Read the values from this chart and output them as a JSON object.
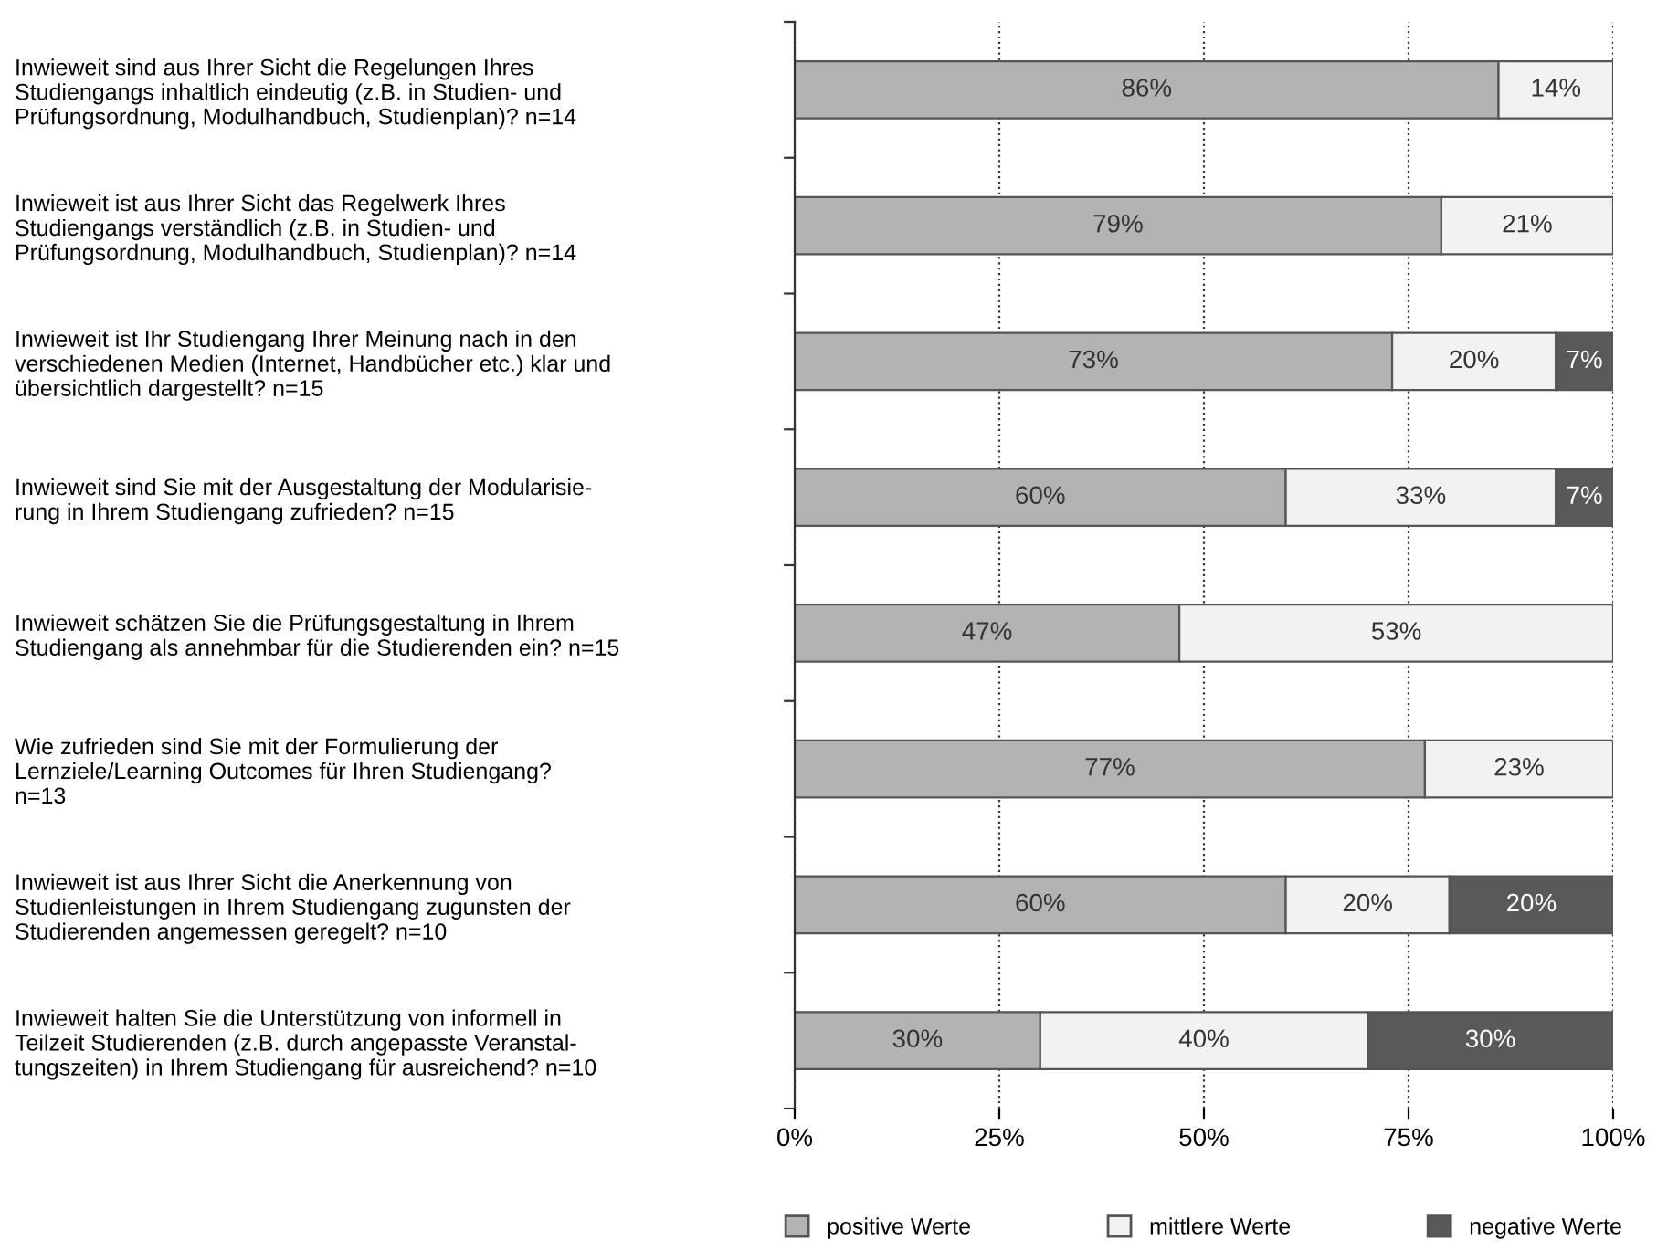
{
  "chart_data": {
    "type": "bar",
    "orientation": "horizontal",
    "stacked": true,
    "categories": [
      "Inwieweit sind aus Ihrer Sicht die Regelungen Ihres\nStudiengangs inhaltlich eindeutig (z.B. in Studien- und\nPrüfungsordnung, Modulhandbuch, Studienplan)? n=14",
      "Inwieweit ist aus Ihrer Sicht das Regelwerk Ihres\nStudiengangs verständlich (z.B. in Studien- und\nPrüfungsordnung, Modulhandbuch, Studienplan)? n=14",
      "Inwieweit ist Ihr Studiengang Ihrer Meinung nach in den\nverschiedenen Medien (Internet, Handbücher etc.) klar und\nübersichtlich dargestellt? n=15",
      "Inwieweit sind Sie mit der Ausgestaltung der Modularisie-\nrung in Ihrem Studiengang zufrieden? n=15",
      "Inwieweit schätzen Sie die Prüfungsgestaltung in Ihrem\nStudiengang als annehmbar für die Studierenden ein? n=15",
      "Wie zufrieden sind Sie mit der Formulierung der\nLernziele/Learning Outcomes für Ihren Studiengang?\nn=13",
      "Inwieweit ist aus Ihrer Sicht die Anerkennung von\nStudienleistungen in Ihrem Studiengang zugunsten der\nStudierenden angemessen geregelt? n=10",
      "Inwieweit halten Sie die Unterstützung von informell in\nTeilzeit Studierenden (z.B. durch angepasste Veranstal-\ntungszeiten) in Ihrem Studiengang für ausreichend? n=10"
    ],
    "series": [
      {
        "name": "positive Werte",
        "color": "#b3b3b3",
        "values": [
          86,
          79,
          73,
          60,
          47,
          77,
          60,
          30
        ],
        "value_labels": [
          "86%",
          "79%",
          "73%",
          "60%",
          "47%",
          "77%",
          "60%",
          "30%"
        ]
      },
      {
        "name": "mittlere Werte",
        "color": "#f2f2f2",
        "values": [
          14,
          21,
          20,
          33,
          53,
          23,
          20,
          40
        ],
        "value_labels": [
          "14%",
          "21%",
          "20%",
          "33%",
          "53%",
          "23%",
          "20%",
          "40%"
        ]
      },
      {
        "name": "negative Werte",
        "color": "#595959",
        "values": [
          null,
          null,
          7,
          7,
          null,
          null,
          20,
          30
        ],
        "value_labels": [
          null,
          null,
          "7%",
          "7%",
          null,
          null,
          "20%",
          "30%"
        ]
      }
    ],
    "xlim": [
      0,
      100
    ],
    "xticks": [
      {
        "value": 0,
        "label": "0%"
      },
      {
        "value": 25,
        "label": "25%"
      },
      {
        "value": 50,
        "label": "50%"
      },
      {
        "value": 75,
        "label": "75%"
      },
      {
        "value": 100,
        "label": "100%"
      }
    ],
    "grid": "x",
    "legend": "bottom"
  }
}
